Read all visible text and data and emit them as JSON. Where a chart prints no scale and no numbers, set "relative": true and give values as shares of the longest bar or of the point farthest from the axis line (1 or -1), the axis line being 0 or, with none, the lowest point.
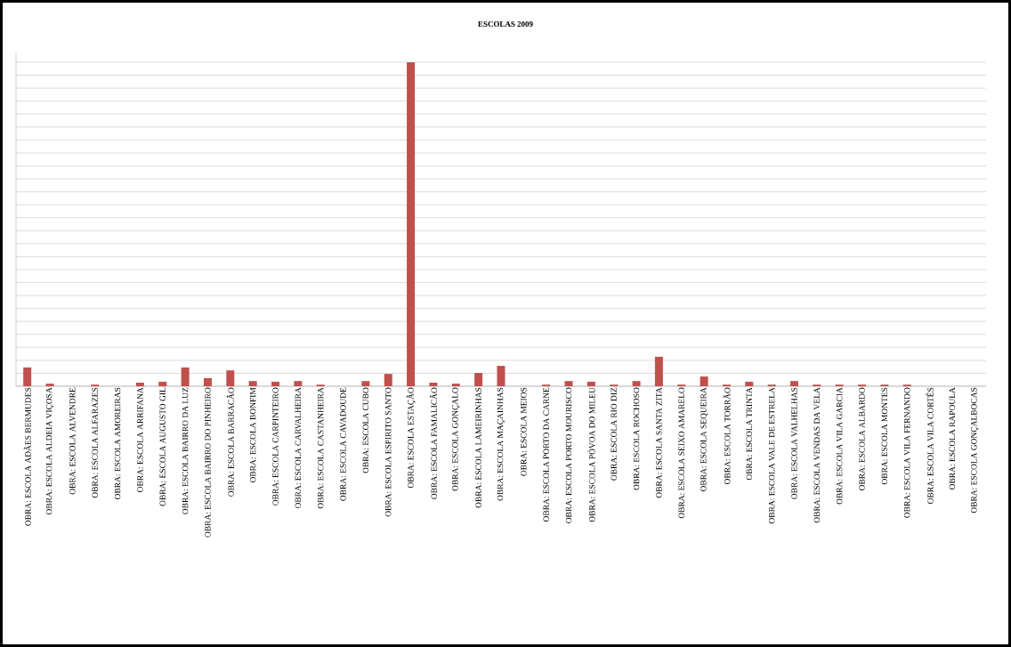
{
  "chart_data": {
    "type": "bar",
    "title": "ESCOLAS 2009",
    "relative": true,
    "grid": "y",
    "color": "#c0504d",
    "categories": [
      "OBRA: ESCOLA ADÃES BERMUDES",
      "OBRA: ESCOLA ALDEIA VIÇOSA",
      "OBRA: ESCOLA ALVENDRE",
      "OBRA: ESCOLA ALFARAZES",
      "OBRA: ESCOLA AMOREIRAS",
      "OBRA: ESCOLA ARRIFANA",
      "OBRA: ESCOLA AUGUSTO GIL",
      "OBRA: ESCOLA BAIRRO DA LUZ",
      "OBRA: ESCOLA BAIRRO DO PINHEIRO",
      "OBRA: ESCOLA BARRACÃO",
      "OBRA: ESCOLA BONFIM",
      "OBRA: ESCOLA CARPINTEIRO",
      "OBRA: ESCOLA CARVALHEIRA",
      "OBRA: ESCOLA CASTANHEIRA",
      "OBRA: ESCOLA CAVADOUDE",
      "OBRA: ESCOLA CUBO",
      "OBRA: ESCOLA ESPIRITO SANTO",
      "OBRA: ESCOLA ESTAÇÃO",
      "OBRA: ESCOLA FAMALICÃO",
      "OBRA: ESCOLA GONÇALO",
      "OBRA: ESCOLA LAMEIRINHAS",
      "OBRA: ESCOLA MAÇAINHAS",
      "OBRA: ESCOLA MEIOS",
      "OBRA: ESCOLA PORTO DA CARNE",
      "OBRA: ESCOLA PORTO MOURISCO",
      "OBRA: ESCOLA PÓVOA DO MILEU",
      "OBRA: ESCOLA RIO DIZ",
      "OBRA: ESCOLA ROCHOSO",
      "OBRA: ESCOLA SANTA ZITA",
      "OBRA: ESCOLA SEIXO AMARELO",
      "OBRA: ESCOLA SEQUEIRA",
      "OBRA: ESCOLA TORRÃO",
      "OBRA: ESCOLA TRINTA",
      "OBRA: ESCOLA VALE DE ESTRELA",
      "OBRA: ESCOLA VALHELHAS",
      "OBRA: ESCOLA VENDAS DA VELA",
      "OBRA: ESCOLA VILA GARCIA",
      "OBRA: ESCOLA ALBARDO",
      "OBRA: ESCOLA MONTES",
      "OBRA: ESCOLA VILA FERNANDO",
      "OBRA: ESCOLA VILA CORTÊS",
      "OBRA: ESCOLA RAPOULA",
      "OBRA: ESCOLA GONÇALBOCAS"
    ],
    "values": [
      0.058,
      0.008,
      0,
      0.005,
      0,
      0.011,
      0.014,
      0.058,
      0.025,
      0.049,
      0.016,
      0.014,
      0.016,
      0.005,
      0,
      0.016,
      0.038,
      1,
      0.011,
      0.008,
      0.041,
      0.063,
      0,
      0.005,
      0.016,
      0.014,
      0.005,
      0.016,
      0.091,
      0.005,
      0.03,
      0.005,
      0.014,
      0.005,
      0.016,
      0.005,
      0.005,
      0.005,
      0.005,
      0.005,
      0,
      0,
      0
    ]
  }
}
